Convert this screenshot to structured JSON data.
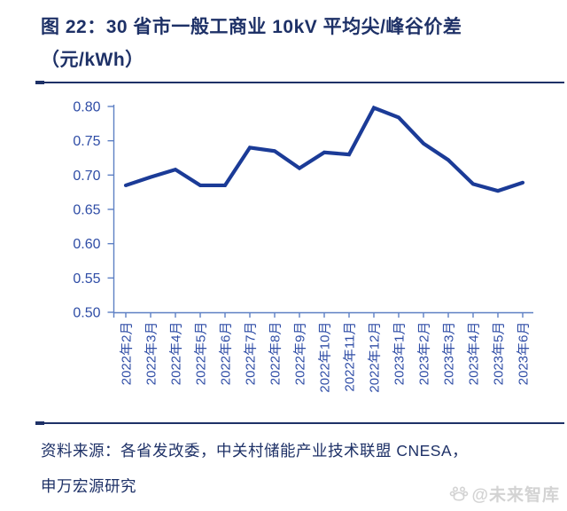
{
  "header": {
    "title_line1": "图 22：30 省市一般工商业 10kV 平均尖/峰谷价差",
    "title_line2": "（元/kWh）"
  },
  "chart_data": {
    "type": "line",
    "title": "30 省市一般工商业 10kV 平均尖/峰谷价差（元/kWh）",
    "x": [
      "2022年2月",
      "2022年3月",
      "2022年4月",
      "2022年5月",
      "2022年6月",
      "2022年7月",
      "2022年8月",
      "2022年9月",
      "2022年10月",
      "2022年11月",
      "2022年12月",
      "2023年1月",
      "2023年2月",
      "2023年3月",
      "2023年4月",
      "2023年5月",
      "2023年6月"
    ],
    "values": [
      0.685,
      0.697,
      0.708,
      0.685,
      0.685,
      0.74,
      0.735,
      0.71,
      0.733,
      0.73,
      0.798,
      0.784,
      0.746,
      0.722,
      0.687,
      0.677,
      0.689
    ],
    "ylim": [
      0.5,
      0.8
    ],
    "yticks": [
      0.8,
      0.75,
      0.7,
      0.65,
      0.6,
      0.55,
      0.5
    ],
    "ytick_format_decimals": 2,
    "grid": false,
    "legend_position": "none",
    "line_color": "#1B3B97",
    "axis_color": "#5E80C4",
    "tick_label_color": "#2F4DA6"
  },
  "footer": {
    "source_lines": [
      "资料来源：各省发改委，中关村储能产业技术联盟 CNESA，",
      "申万宏源研究"
    ],
    "watermark_text": "@未来智库",
    "watermark_color": "#D3D3D3"
  },
  "colors": {
    "title": "#1E3167",
    "rule": "#1E3167"
  }
}
